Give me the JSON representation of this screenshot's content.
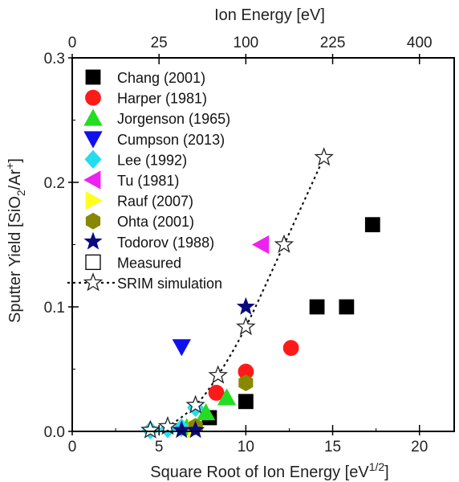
{
  "chart_data": {
    "type": "scatter",
    "title": "",
    "xlabel": "Square Root of Ion Energy [eV",
    "xlabel_sup": "1/2",
    "xlabel_tail": "]",
    "x2label": "Ion Energy [eV]",
    "ylabel_parts": [
      "Sputter Yield [SiO",
      "2",
      "/Ar",
      "+",
      "]"
    ],
    "xlim": [
      0,
      22
    ],
    "ylim": [
      0,
      0.3
    ],
    "x_ticks": [
      0,
      5,
      10,
      15,
      20
    ],
    "x_tick_labels": [
      "0",
      "5",
      "10",
      "15",
      "20"
    ],
    "y_ticks": [
      0.0,
      0.1,
      0.2,
      0.3
    ],
    "y_tick_labels": [
      "0.0",
      "0.1",
      "0.2",
      "0.3"
    ],
    "top_ticks": [
      0,
      25,
      100,
      225,
      400
    ],
    "top_tick_labels": [
      "0",
      "25",
      "100",
      "225",
      "400"
    ],
    "top_scale": "square-root",
    "legend_position": "upper-left",
    "series": [
      {
        "name": "Chang (2001)",
        "marker": "square",
        "color": "#000000",
        "filled": true,
        "points": [
          [
            7.9,
            0.011
          ],
          [
            10.0,
            0.024
          ],
          [
            14.1,
            0.1
          ],
          [
            15.8,
            0.1
          ],
          [
            17.3,
            0.166
          ]
        ]
      },
      {
        "name": "Harper (1981)",
        "marker": "circle",
        "color": "#ff1a1a",
        "filled": true,
        "points": [
          [
            8.3,
            0.031
          ],
          [
            10.0,
            0.048
          ],
          [
            12.6,
            0.067
          ]
        ]
      },
      {
        "name": "Jorgenson (1965)",
        "marker": "triangle-up",
        "color": "#22dd22",
        "filled": true,
        "points": [
          [
            6.6,
            0.003
          ],
          [
            7.7,
            0.015
          ],
          [
            8.9,
            0.027
          ]
        ]
      },
      {
        "name": "Cumpson (2013)",
        "marker": "triangle-down",
        "color": "#1010ee",
        "filled": true,
        "points": [
          [
            6.3,
            0.068
          ]
        ]
      },
      {
        "name": "Lee (1992)",
        "marker": "diamond",
        "color": "#22ddee",
        "filled": true,
        "points": [
          [
            4.5,
            0.001
          ],
          [
            5.5,
            0.002
          ],
          [
            6.3,
            0.003
          ],
          [
            7.1,
            0.019
          ]
        ]
      },
      {
        "name": "Tu (1981)",
        "marker": "triangle-left",
        "color": "#ee22ee",
        "filled": true,
        "points": [
          [
            10.9,
            0.15
          ]
        ]
      },
      {
        "name": "Rauf (2007)",
        "marker": "triangle-right",
        "color": "#ffff22",
        "filled": true,
        "points": [
          [
            7.1,
            0.002
          ]
        ]
      },
      {
        "name": "Ohta (2001)",
        "marker": "hexagon",
        "color": "#888800",
        "filled": true,
        "points": [
          [
            7.1,
            0.004
          ],
          [
            10.0,
            0.039
          ]
        ]
      },
      {
        "name": "Todorov (1988)",
        "marker": "star",
        "color": "#0a0a80",
        "filled": true,
        "points": [
          [
            4.5,
            0.001
          ],
          [
            6.3,
            0.001
          ],
          [
            7.1,
            0.001
          ],
          [
            10.0,
            0.1
          ]
        ]
      },
      {
        "name": "Measured",
        "marker": "square",
        "color": "#000000",
        "filled": false,
        "points": []
      },
      {
        "name": "SRIM simulation",
        "marker": "star",
        "color": "#222222",
        "filled": false,
        "line": "dotted",
        "points": [
          [
            4.5,
            0.001
          ],
          [
            5.5,
            0.004
          ],
          [
            7.1,
            0.021
          ],
          [
            8.4,
            0.045
          ],
          [
            10.0,
            0.084
          ],
          [
            12.2,
            0.15
          ],
          [
            14.5,
            0.22
          ]
        ]
      }
    ]
  }
}
